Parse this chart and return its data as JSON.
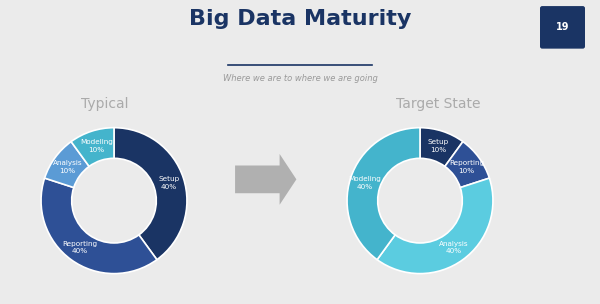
{
  "title": "Big Data Maturity",
  "subtitle": "Where we are to where we are going",
  "background_color": "#ebebeb",
  "typical_title": "Typical",
  "target_title": "Target State",
  "typical_slices": [
    {
      "label": "Setup\n40%",
      "value": 40,
      "color": "#1a3464"
    },
    {
      "label": "Reporting\n40%",
      "value": 40,
      "color": "#2e5096"
    },
    {
      "label": "Analysis\n10%",
      "value": 10,
      "color": "#5b9bd5"
    },
    {
      "label": "Modeling\n10%",
      "value": 10,
      "color": "#44b4cc"
    }
  ],
  "target_slices": [
    {
      "label": "Setup\n10%",
      "value": 10,
      "color": "#1a3464"
    },
    {
      "label": "Reporting\n10%",
      "value": 10,
      "color": "#2e5096"
    },
    {
      "label": "Analysis\n40%",
      "value": 40,
      "color": "#5bcce0"
    },
    {
      "label": "Modeling\n40%",
      "value": 40,
      "color": "#44b4cc"
    }
  ],
  "label_color": "#ffffff",
  "title_color": "#1a3464",
  "subtitle_color": "#999999",
  "section_title_color": "#aaaaaa",
  "arrow_color": "#b0b0b0",
  "badge_color": "#1a3464",
  "badge_number": "19"
}
